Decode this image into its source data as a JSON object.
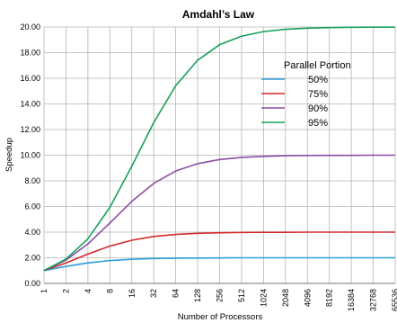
{
  "chart_data": {
    "type": "line",
    "title": "Amdahl’s Law",
    "xlabel": "Number of Processors",
    "ylabel": "Speedup",
    "x_scale": "log2",
    "categories": [
      "1",
      "2",
      "4",
      "8",
      "16",
      "32",
      "64",
      "128",
      "256",
      "512",
      "1024",
      "2048",
      "4096",
      "8192",
      "16384",
      "32768",
      "65536"
    ],
    "ylim": [
      0,
      20
    ],
    "yticks": [
      "0.00",
      "2.00",
      "4.00",
      "6.00",
      "8.00",
      "10.00",
      "12.00",
      "14.00",
      "16.00",
      "18.00",
      "20.00"
    ],
    "grid": true,
    "legend_title": "Parallel Portion",
    "legend_position": "right",
    "series": [
      {
        "name": "50%",
        "color": "#2b9fd6",
        "values": [
          1.0,
          1.33,
          1.6,
          1.78,
          1.88,
          1.94,
          1.97,
          1.98,
          1.99,
          2.0,
          2.0,
          2.0,
          2.0,
          2.0,
          2.0,
          2.0,
          2.0
        ]
      },
      {
        "name": "75%",
        "color": "#d42a2a",
        "values": [
          1.0,
          1.6,
          2.29,
          2.91,
          3.37,
          3.66,
          3.82,
          3.91,
          3.95,
          3.98,
          3.99,
          3.99,
          4.0,
          4.0,
          4.0,
          4.0,
          4.0
        ]
      },
      {
        "name": "90%",
        "color": "#8b4ea6",
        "values": [
          1.0,
          1.82,
          3.08,
          4.71,
          6.4,
          7.8,
          8.77,
          9.34,
          9.66,
          9.83,
          9.91,
          9.96,
          9.98,
          9.99,
          9.99,
          10.0,
          10.0
        ]
      },
      {
        "name": "95%",
        "color": "#17a05a",
        "values": [
          1.0,
          1.9,
          3.48,
          5.93,
          9.14,
          12.55,
          15.42,
          17.41,
          18.62,
          19.28,
          19.64,
          19.82,
          19.91,
          19.95,
          19.98,
          19.99,
          19.99
        ]
      }
    ]
  }
}
